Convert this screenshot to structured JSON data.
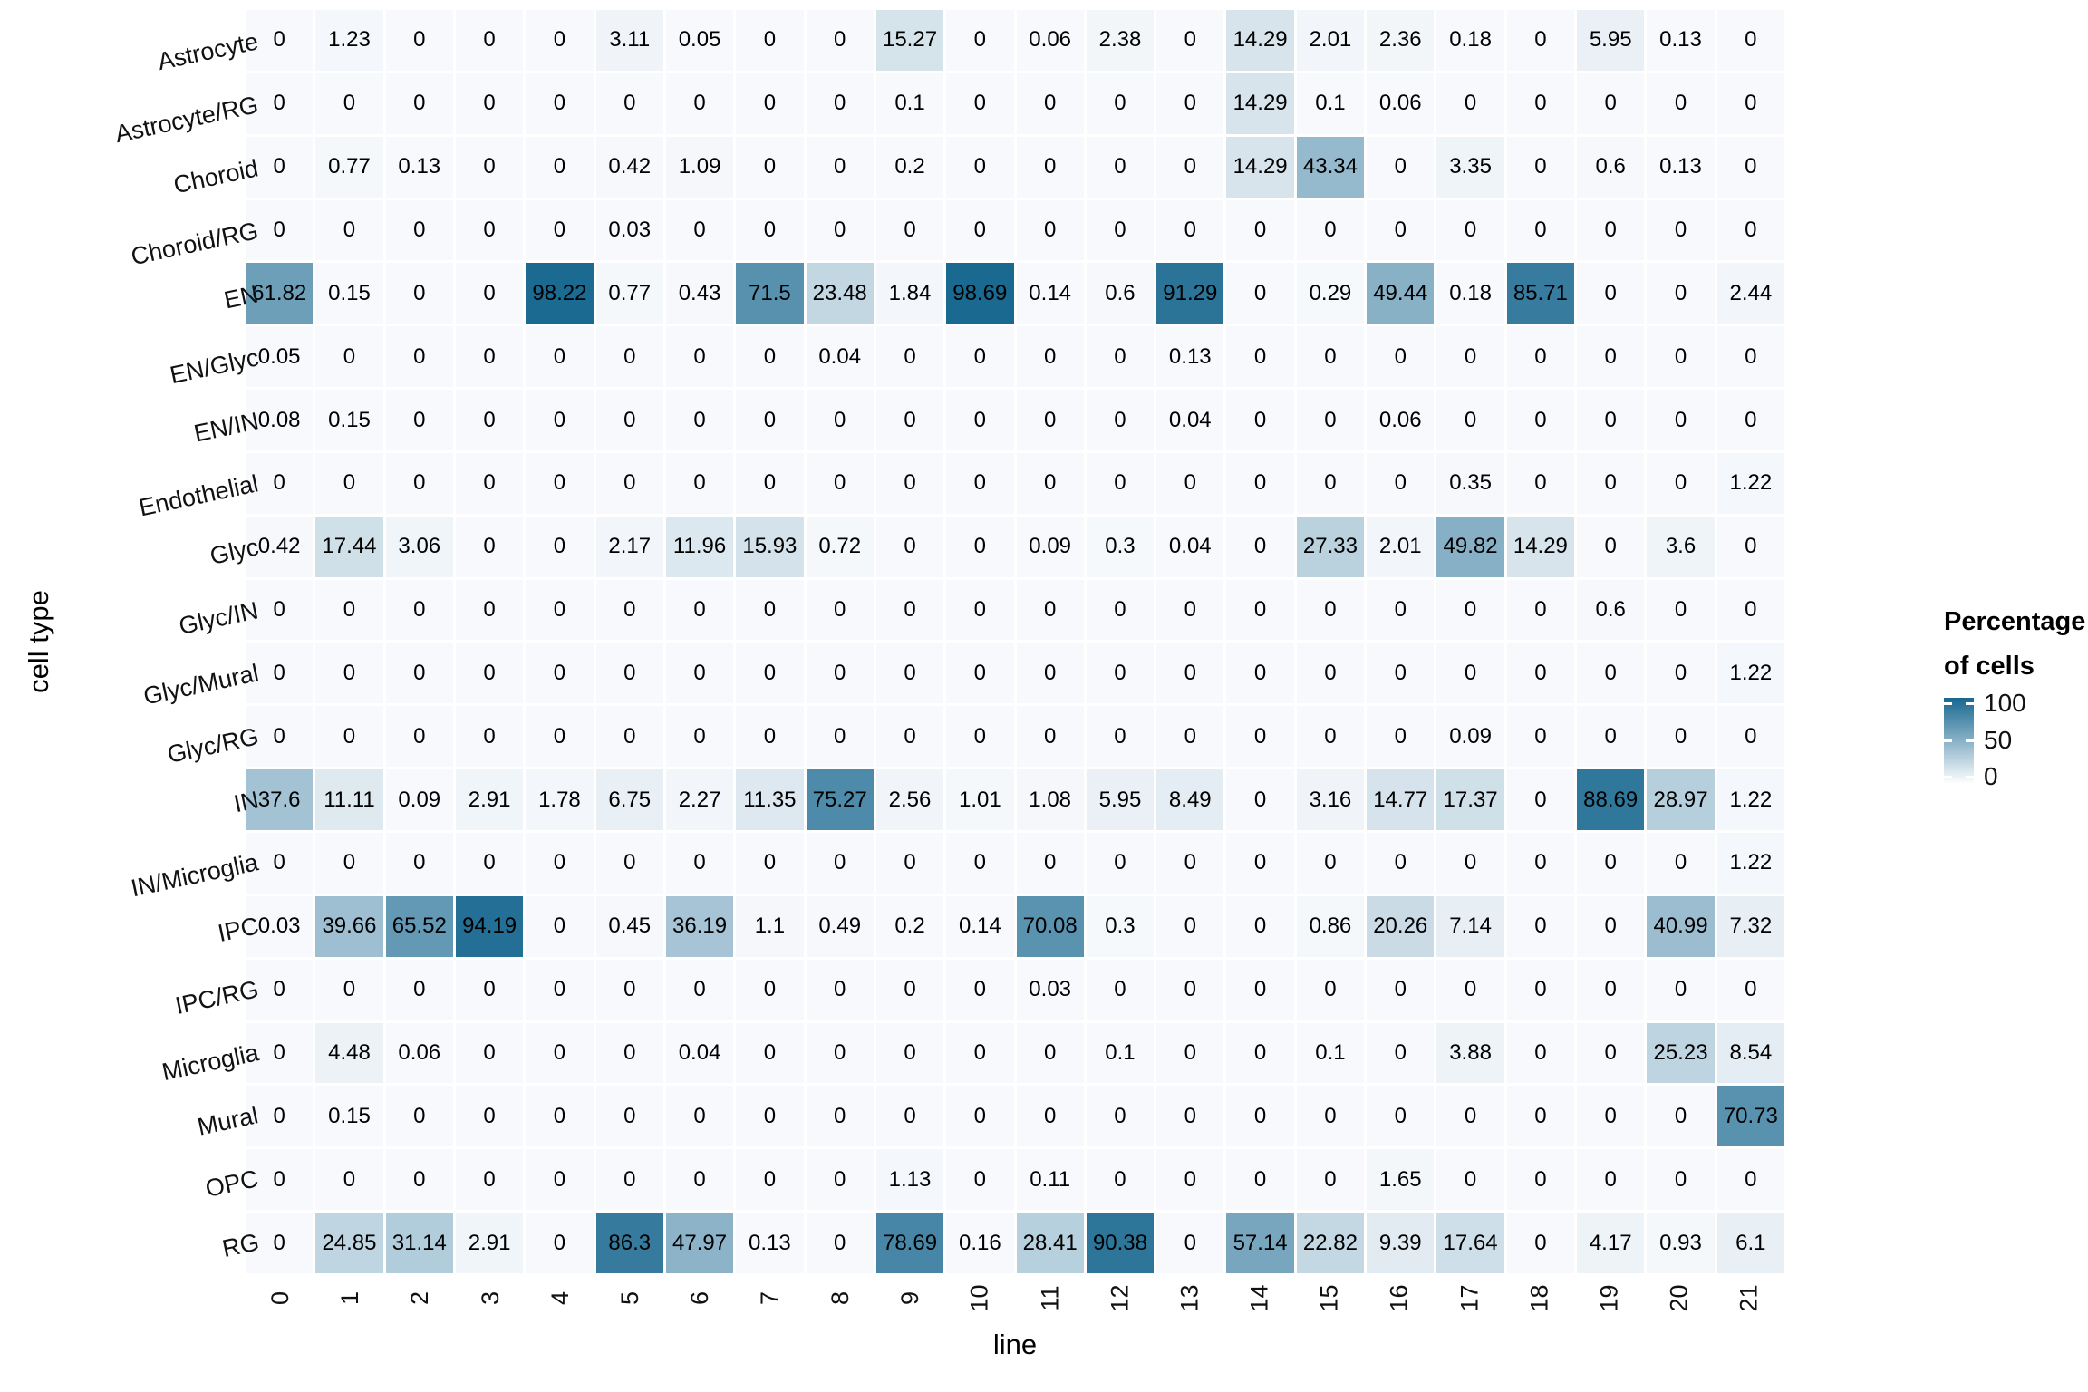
{
  "chart_data": {
    "type": "heatmap",
    "title": "",
    "xlabel": "line",
    "ylabel": "cell type",
    "legend_position": "right",
    "grid": false,
    "x_categories": [
      "0",
      "1",
      "2",
      "3",
      "4",
      "5",
      "6",
      "7",
      "8",
      "9",
      "10",
      "11",
      "12",
      "13",
      "14",
      "15",
      "16",
      "17",
      "18",
      "19",
      "20",
      "21"
    ],
    "y_categories": [
      "Astrocyte",
      "Astrocyte/RG",
      "Choroid",
      "Choroid/RG",
      "EN",
      "EN/Glyc",
      "EN/IN",
      "Endothelial",
      "Glyc",
      "Glyc/IN",
      "Glyc/Mural",
      "Glyc/RG",
      "IN",
      "IN/Microglia",
      "IPC",
      "IPC/RG",
      "Microglia",
      "Mural",
      "OPC",
      "RG"
    ],
    "values": [
      [
        "0",
        "1.23",
        "0",
        "0",
        "0",
        "3.11",
        "0.05",
        "0",
        "0",
        "15.27",
        "0",
        "0.06",
        "2.38",
        "0",
        "14.29",
        "2.01",
        "2.36",
        "0.18",
        "0",
        "5.95",
        "0.13",
        "0"
      ],
      [
        "0",
        "0",
        "0",
        "0",
        "0",
        "0",
        "0",
        "0",
        "0",
        "0.1",
        "0",
        "0",
        "0",
        "0",
        "14.29",
        "0.1",
        "0.06",
        "0",
        "0",
        "0",
        "0",
        "0"
      ],
      [
        "0",
        "0.77",
        "0.13",
        "0",
        "0",
        "0.42",
        "1.09",
        "0",
        "0",
        "0.2",
        "0",
        "0",
        "0",
        "0",
        "14.29",
        "43.34",
        "0",
        "3.35",
        "0",
        "0.6",
        "0.13",
        "0"
      ],
      [
        "0",
        "0",
        "0",
        "0",
        "0",
        "0.03",
        "0",
        "0",
        "0",
        "0",
        "0",
        "0",
        "0",
        "0",
        "0",
        "0",
        "0",
        "0",
        "0",
        "0",
        "0",
        "0"
      ],
      [
        "61.82",
        "0.15",
        "0",
        "0",
        "98.22",
        "0.77",
        "0.43",
        "71.5",
        "23.48",
        "1.84",
        "98.69",
        "0.14",
        "0.6",
        "91.29",
        "0",
        "0.29",
        "49.44",
        "0.18",
        "85.71",
        "0",
        "0",
        "2.44"
      ],
      [
        "0.05",
        "0",
        "0",
        "0",
        "0",
        "0",
        "0",
        "0",
        "0.04",
        "0",
        "0",
        "0",
        "0",
        "0.13",
        "0",
        "0",
        "0",
        "0",
        "0",
        "0",
        "0",
        "0"
      ],
      [
        "0.08",
        "0.15",
        "0",
        "0",
        "0",
        "0",
        "0",
        "0",
        "0",
        "0",
        "0",
        "0",
        "0",
        "0.04",
        "0",
        "0",
        "0.06",
        "0",
        "0",
        "0",
        "0",
        "0"
      ],
      [
        "0",
        "0",
        "0",
        "0",
        "0",
        "0",
        "0",
        "0",
        "0",
        "0",
        "0",
        "0",
        "0",
        "0",
        "0",
        "0",
        "0",
        "0.35",
        "0",
        "0",
        "0",
        "1.22"
      ],
      [
        "0.42",
        "17.44",
        "3.06",
        "0",
        "0",
        "2.17",
        "11.96",
        "15.93",
        "0.72",
        "0",
        "0",
        "0.09",
        "0.3",
        "0.04",
        "0",
        "27.33",
        "2.01",
        "49.82",
        "14.29",
        "0",
        "3.6",
        "0"
      ],
      [
        "0",
        "0",
        "0",
        "0",
        "0",
        "0",
        "0",
        "0",
        "0",
        "0",
        "0",
        "0",
        "0",
        "0",
        "0",
        "0",
        "0",
        "0",
        "0",
        "0.6",
        "0",
        "0"
      ],
      [
        "0",
        "0",
        "0",
        "0",
        "0",
        "0",
        "0",
        "0",
        "0",
        "0",
        "0",
        "0",
        "0",
        "0",
        "0",
        "0",
        "0",
        "0",
        "0",
        "0",
        "0",
        "1.22"
      ],
      [
        "0",
        "0",
        "0",
        "0",
        "0",
        "0",
        "0",
        "0",
        "0",
        "0",
        "0",
        "0",
        "0",
        "0",
        "0",
        "0",
        "0",
        "0.09",
        "0",
        "0",
        "0",
        "0"
      ],
      [
        "37.6",
        "11.11",
        "0.09",
        "2.91",
        "1.78",
        "6.75",
        "2.27",
        "11.35",
        "75.27",
        "2.56",
        "1.01",
        "1.08",
        "5.95",
        "8.49",
        "0",
        "3.16",
        "14.77",
        "17.37",
        "0",
        "88.69",
        "28.97",
        "1.22"
      ],
      [
        "0",
        "0",
        "0",
        "0",
        "0",
        "0",
        "0",
        "0",
        "0",
        "0",
        "0",
        "0",
        "0",
        "0",
        "0",
        "0",
        "0",
        "0",
        "0",
        "0",
        "0",
        "1.22"
      ],
      [
        "0.03",
        "39.66",
        "65.52",
        "94.19",
        "0",
        "0.45",
        "36.19",
        "1.1",
        "0.49",
        "0.2",
        "0.14",
        "70.08",
        "0.3",
        "0",
        "0",
        "0.86",
        "20.26",
        "7.14",
        "0",
        "0",
        "40.99",
        "7.32"
      ],
      [
        "0",
        "0",
        "0",
        "0",
        "0",
        "0",
        "0",
        "0",
        "0",
        "0",
        "0",
        "0.03",
        "0",
        "0",
        "0",
        "0",
        "0",
        "0",
        "0",
        "0",
        "0",
        "0"
      ],
      [
        "0",
        "4.48",
        "0.06",
        "0",
        "0",
        "0",
        "0.04",
        "0",
        "0",
        "0",
        "0",
        "0",
        "0.1",
        "0",
        "0",
        "0.1",
        "0",
        "3.88",
        "0",
        "0",
        "25.23",
        "8.54"
      ],
      [
        "0",
        "0.15",
        "0",
        "0",
        "0",
        "0",
        "0",
        "0",
        "0",
        "0",
        "0",
        "0",
        "0",
        "0",
        "0",
        "0",
        "0",
        "0",
        "0",
        "0",
        "0",
        "70.73"
      ],
      [
        "0",
        "0",
        "0",
        "0",
        "0",
        "0",
        "0",
        "0",
        "0",
        "1.13",
        "0",
        "0.11",
        "0",
        "0",
        "0",
        "0",
        "1.65",
        "0",
        "0",
        "0",
        "0",
        "0"
      ],
      [
        "0",
        "24.85",
        "31.14",
        "2.91",
        "0",
        "86.3",
        "47.97",
        "0.13",
        "0",
        "78.69",
        "0.16",
        "28.41",
        "90.38",
        "0",
        "57.14",
        "22.82",
        "9.39",
        "17.64",
        "0",
        "4.17",
        "0.93",
        "6.1"
      ]
    ],
    "colorbar": {
      "title_line1": "Percentage",
      "title_line2": "of cells",
      "tick_labels": [
        "100",
        "50",
        "0"
      ],
      "domain": [
        0,
        100
      ],
      "low_color": "#f7f9fc",
      "high_color": "#17678f"
    }
  }
}
